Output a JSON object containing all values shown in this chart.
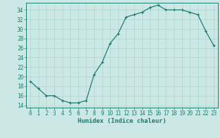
{
  "x": [
    0,
    1,
    2,
    3,
    4,
    5,
    6,
    7,
    8,
    9,
    10,
    11,
    12,
    13,
    14,
    15,
    16,
    17,
    18,
    19,
    20,
    21,
    22,
    23
  ],
  "y": [
    19,
    17.5,
    16,
    16,
    15,
    14.5,
    14.5,
    15,
    20.5,
    23,
    27,
    29,
    32.5,
    33,
    33.5,
    34.5,
    35,
    34,
    34,
    34,
    33.5,
    33,
    29.5,
    26.5
  ],
  "line_color": "#1a7a6e",
  "marker": "+",
  "marker_size": 3,
  "marker_linewidth": 0.8,
  "bg_color": "#cce8e4",
  "grid_color": "#aad4ce",
  "xlabel": "Humidex (Indice chaleur)",
  "xlim": [
    -0.5,
    23.5
  ],
  "ylim": [
    13.5,
    35.5
  ],
  "yticks": [
    14,
    16,
    18,
    20,
    22,
    24,
    26,
    28,
    30,
    32,
    34
  ],
  "xticks": [
    0,
    1,
    2,
    3,
    4,
    5,
    6,
    7,
    8,
    9,
    10,
    11,
    12,
    13,
    14,
    15,
    16,
    17,
    18,
    19,
    20,
    21,
    22,
    23
  ],
  "tick_color": "#1a7a6e",
  "axis_color": "#1a7a6e",
  "label_fontsize": 6.5,
  "tick_fontsize": 5.5,
  "line_width": 0.9
}
